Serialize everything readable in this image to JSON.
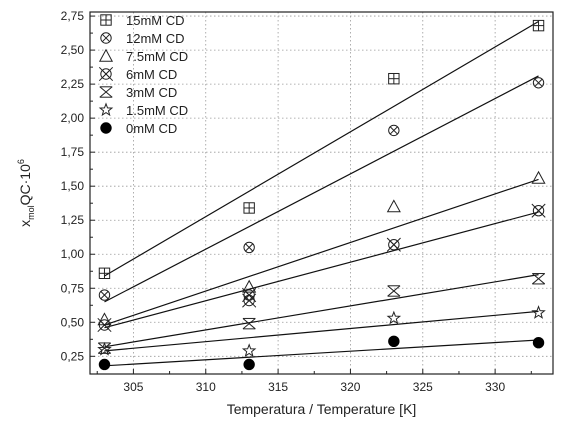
{
  "chart_data": {
    "type": "scatter",
    "xlabel": "Temperatura / Temperature [K]",
    "ylabel": "x_mol QC·10^6",
    "ylabel_parts": {
      "main": "x",
      "sub": "mol",
      "rest": "QC·10",
      "sup": "6"
    },
    "xlim": [
      302,
      334
    ],
    "ylim": [
      0.12,
      2.78
    ],
    "x_ticks": [
      {
        "value": 305,
        "label": "305"
      },
      {
        "value": 310,
        "label": "310"
      },
      {
        "value": 315,
        "label": "315"
      },
      {
        "value": 320,
        "label": "320"
      },
      {
        "value": 325,
        "label": "325"
      },
      {
        "value": 330,
        "label": "330"
      }
    ],
    "y_ticks": [
      {
        "value": 0.25,
        "label": "0,25"
      },
      {
        "value": 0.5,
        "label": "0,50"
      },
      {
        "value": 0.75,
        "label": "0,75"
      },
      {
        "value": 1.0,
        "label": "1,00"
      },
      {
        "value": 1.25,
        "label": "1,25"
      },
      {
        "value": 1.5,
        "label": "1,50"
      },
      {
        "value": 1.75,
        "label": "1,75"
      },
      {
        "value": 2.0,
        "label": "2,00"
      },
      {
        "value": 2.25,
        "label": "2,25"
      },
      {
        "value": 2.5,
        "label": "2,50"
      },
      {
        "value": 2.75,
        "label": "2,75"
      }
    ],
    "grid": true,
    "legend_position": "top-left",
    "fit_x_range": [
      303,
      333
    ],
    "series": [
      {
        "name": "15mM CD",
        "marker": "square-plus",
        "x": [
          303,
          313,
          323,
          333
        ],
        "y": [
          0.86,
          1.34,
          2.29,
          2.68
        ],
        "fit": [
          0.84,
          2.71
        ]
      },
      {
        "name": "12mM CD",
        "marker": "circle-x",
        "x": [
          303,
          313,
          323,
          333
        ],
        "y": [
          0.7,
          1.05,
          1.91,
          2.26
        ],
        "fit": [
          0.65,
          2.31
        ]
      },
      {
        "name": "7.5mM CD",
        "marker": "triangle",
        "x": [
          303,
          313,
          323,
          333
        ],
        "y": [
          0.52,
          0.76,
          1.35,
          1.56
        ],
        "fit": [
          0.48,
          1.55
        ]
      },
      {
        "name": "6mM CD",
        "marker": "double-circle-x",
        "x": [
          303,
          313,
          313,
          323,
          333
        ],
        "y": [
          0.48,
          0.66,
          0.7,
          1.07,
          1.32
        ],
        "fit": [
          0.46,
          1.31
        ]
      },
      {
        "name": "3mM CD",
        "marker": "asterisk",
        "x": [
          303,
          313,
          323,
          333
        ],
        "y": [
          0.31,
          0.49,
          0.73,
          0.82
        ],
        "fit": [
          0.32,
          0.85
        ]
      },
      {
        "name": "1.5mM CD",
        "marker": "star",
        "x": [
          303,
          313,
          323,
          333
        ],
        "y": [
          0.3,
          0.29,
          0.53,
          0.57
        ],
        "fit": [
          0.29,
          0.58
        ]
      },
      {
        "name": "0mM CD",
        "marker": "filled-circle",
        "x": [
          303,
          313,
          323,
          333
        ],
        "y": [
          0.19,
          0.19,
          0.36,
          0.35
        ],
        "fit": [
          0.18,
          0.37
        ]
      }
    ]
  }
}
